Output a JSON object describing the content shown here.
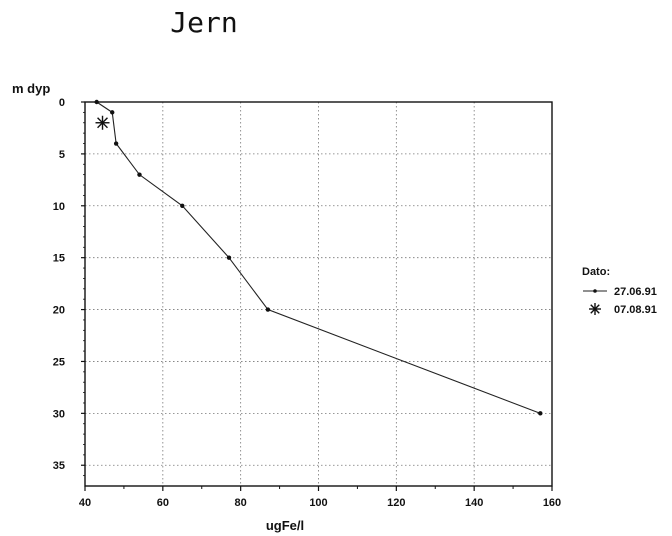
{
  "chart_data": {
    "type": "line",
    "title": "Jern",
    "xlabel": "ugFe/l",
    "ylabel": "m dyp",
    "xlim": [
      40,
      160
    ],
    "ylim": [
      0,
      37
    ],
    "y_inverted": true,
    "xticks": [
      40,
      60,
      80,
      100,
      120,
      140,
      160
    ],
    "yticks": [
      0,
      5,
      10,
      15,
      20,
      25,
      30,
      35
    ],
    "grid": true,
    "legend": {
      "title": "Dato:",
      "placement": "right"
    },
    "series": [
      {
        "name": "27.06.91",
        "marker": "dot",
        "x": [
          43,
          47,
          48,
          54,
          65,
          77,
          87,
          157
        ],
        "y": [
          0,
          1,
          4,
          7,
          10,
          15,
          20,
          30
        ]
      },
      {
        "name": "07.08.91",
        "marker": "star",
        "x": [
          44.5
        ],
        "y": [
          2
        ]
      }
    ]
  }
}
